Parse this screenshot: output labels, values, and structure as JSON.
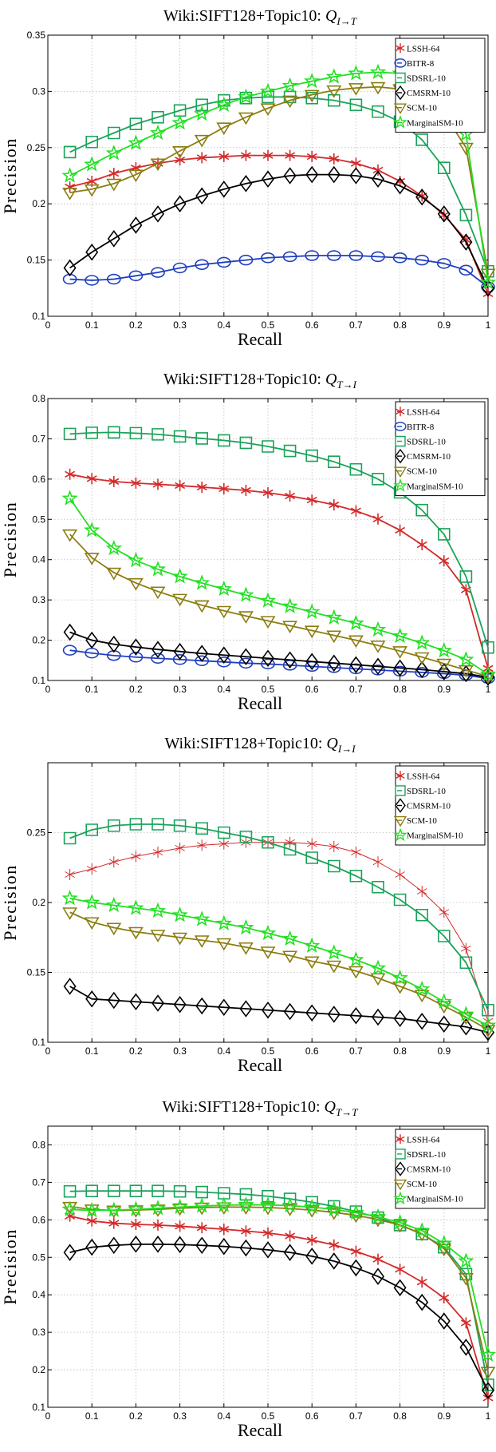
{
  "chart_data": [
    {
      "type": "line",
      "title": "Wiki:SIFT128+Topic10: ",
      "title_math": {
        "base": "Q",
        "sub": "I→T"
      },
      "xlabel": "Recall",
      "ylabel": "Precision",
      "xlim": [
        0,
        1
      ],
      "ylim": [
        0.1,
        0.35
      ],
      "xticks": [
        0,
        0.1,
        0.2,
        0.3,
        0.4,
        0.5,
        0.6,
        0.7,
        0.8,
        0.9,
        1
      ],
      "xtick_labels": [
        "0",
        "0.1",
        "0.2",
        "0.3",
        "0.4",
        "0.5",
        "0.6",
        "0.7",
        "0.8",
        "0.9",
        "1"
      ],
      "yticks": [
        0.1,
        0.15,
        0.2,
        0.25,
        0.3,
        0.35
      ],
      "ytick_labels": [
        "0.1",
        "0.15",
        "0.2",
        "0.25",
        "0.3",
        "0.35"
      ],
      "grid": true,
      "legend_position": "top-right",
      "x": [
        0.05,
        0.1,
        0.15,
        0.2,
        0.25,
        0.3,
        0.35,
        0.4,
        0.45,
        0.5,
        0.55,
        0.6,
        0.65,
        0.7,
        0.75,
        0.8,
        0.85,
        0.9,
        0.95,
        1.0
      ],
      "series": [
        {
          "name": "LSSH-64",
          "color": "#d42a2a",
          "marker": "star6",
          "values": [
            0.215,
            0.22,
            0.227,
            0.232,
            0.236,
            0.239,
            0.241,
            0.242,
            0.243,
            0.243,
            0.243,
            0.242,
            0.24,
            0.236,
            0.23,
            0.22,
            0.207,
            0.19,
            0.168,
            0.12
          ]
        },
        {
          "name": "BITR-8",
          "color": "#1f3fbf",
          "marker": "circle",
          "values": [
            0.133,
            0.132,
            0.133,
            0.136,
            0.139,
            0.143,
            0.146,
            0.148,
            0.15,
            0.152,
            0.153,
            0.154,
            0.154,
            0.154,
            0.153,
            0.152,
            0.15,
            0.147,
            0.141,
            0.126
          ]
        },
        {
          "name": "SDSRL-10",
          "color": "#1aa35a",
          "marker": "square",
          "values": [
            0.246,
            0.255,
            0.263,
            0.271,
            0.277,
            0.283,
            0.288,
            0.292,
            0.294,
            0.295,
            0.295,
            0.294,
            0.292,
            0.288,
            0.282,
            0.273,
            0.257,
            0.232,
            0.19,
            0.14
          ]
        },
        {
          "name": "CMSRM-10",
          "color": "#000000",
          "marker": "diamond",
          "values": [
            0.143,
            0.157,
            0.169,
            0.181,
            0.191,
            0.2,
            0.207,
            0.213,
            0.218,
            0.222,
            0.225,
            0.226,
            0.226,
            0.225,
            0.222,
            0.216,
            0.206,
            0.191,
            0.166,
            0.125
          ]
        },
        {
          "name": "SCM-10",
          "color": "#8b7d10",
          "marker": "triangle-down",
          "values": [
            0.21,
            0.213,
            0.218,
            0.226,
            0.236,
            0.247,
            0.257,
            0.268,
            0.277,
            0.285,
            0.292,
            0.297,
            0.301,
            0.303,
            0.304,
            0.302,
            0.295,
            0.28,
            0.25,
            0.138
          ]
        },
        {
          "name": "MarginalSM-10",
          "color": "#22e022",
          "marker": "pentagram",
          "values": [
            0.225,
            0.235,
            0.245,
            0.254,
            0.263,
            0.272,
            0.28,
            0.288,
            0.295,
            0.3,
            0.305,
            0.309,
            0.313,
            0.316,
            0.317,
            0.316,
            0.31,
            0.296,
            0.262,
            0.13
          ]
        }
      ]
    },
    {
      "type": "line",
      "title": "Wiki:SIFT128+Topic10: ",
      "title_math": {
        "base": "Q",
        "sub": "T→I"
      },
      "xlabel": "Recall",
      "ylabel": "Precision",
      "xlim": [
        0,
        1
      ],
      "ylim": [
        0.1,
        0.8
      ],
      "xticks": [
        0,
        0.1,
        0.2,
        0.3,
        0.4,
        0.5,
        0.6,
        0.7,
        0.8,
        0.9,
        1
      ],
      "xtick_labels": [
        "0",
        "0.1",
        "0.2",
        "0.3",
        "0.4",
        "0.5",
        "0.6",
        "0.7",
        "0.8",
        "0.9",
        "1"
      ],
      "yticks": [
        0.1,
        0.2,
        0.3,
        0.4,
        0.5,
        0.6,
        0.7,
        0.8
      ],
      "ytick_labels": [
        "0.1",
        "0.2",
        "0.3",
        "0.4",
        "0.5",
        "0.6",
        "0.7",
        "0.8"
      ],
      "grid": true,
      "legend_position": "top-right",
      "x": [
        0.05,
        0.1,
        0.15,
        0.2,
        0.25,
        0.3,
        0.35,
        0.4,
        0.45,
        0.5,
        0.55,
        0.6,
        0.65,
        0.7,
        0.75,
        0.8,
        0.85,
        0.9,
        0.95,
        1.0
      ],
      "series": [
        {
          "name": "LSSH-64",
          "color": "#d42a2a",
          "marker": "star6",
          "values": [
            0.612,
            0.601,
            0.594,
            0.59,
            0.587,
            0.584,
            0.58,
            0.576,
            0.572,
            0.566,
            0.558,
            0.548,
            0.536,
            0.521,
            0.501,
            0.473,
            0.437,
            0.397,
            0.325,
            0.13
          ]
        },
        {
          "name": "BITR-8",
          "color": "#1f3fbf",
          "marker": "circle",
          "values": [
            0.175,
            0.168,
            0.162,
            0.158,
            0.155,
            0.152,
            0.149,
            0.146,
            0.143,
            0.141,
            0.138,
            0.135,
            0.132,
            0.129,
            0.126,
            0.123,
            0.12,
            0.117,
            0.113,
            0.105
          ]
        },
        {
          "name": "SDSRL-10",
          "color": "#1aa35a",
          "marker": "square",
          "values": [
            0.712,
            0.715,
            0.716,
            0.714,
            0.711,
            0.706,
            0.701,
            0.696,
            0.69,
            0.681,
            0.67,
            0.658,
            0.643,
            0.624,
            0.6,
            0.567,
            0.523,
            0.463,
            0.358,
            0.182
          ]
        },
        {
          "name": "CMSRM-10",
          "color": "#000000",
          "marker": "diamond",
          "values": [
            0.22,
            0.2,
            0.19,
            0.183,
            0.177,
            0.172,
            0.167,
            0.163,
            0.159,
            0.155,
            0.151,
            0.147,
            0.143,
            0.139,
            0.135,
            0.131,
            0.127,
            0.122,
            0.117,
            0.108
          ]
        },
        {
          "name": "SCM-10",
          "color": "#8b7d10",
          "marker": "triangle-down",
          "values": [
            0.463,
            0.405,
            0.368,
            0.342,
            0.321,
            0.303,
            0.287,
            0.273,
            0.26,
            0.248,
            0.236,
            0.224,
            0.212,
            0.2,
            0.187,
            0.173,
            0.158,
            0.142,
            0.126,
            0.11
          ]
        },
        {
          "name": "MarginalSM-10",
          "color": "#22e022",
          "marker": "pentagram",
          "values": [
            0.552,
            0.473,
            0.428,
            0.398,
            0.376,
            0.358,
            0.342,
            0.327,
            0.312,
            0.298,
            0.284,
            0.27,
            0.256,
            0.242,
            0.226,
            0.21,
            0.193,
            0.174,
            0.152,
            0.115
          ]
        }
      ]
    },
    {
      "type": "line",
      "title": "Wiki:SIFT128+Topic10: ",
      "title_math": {
        "base": "Q",
        "sub": "I→I"
      },
      "xlabel": "Recall",
      "ylabel": "Precision",
      "xlim": [
        0,
        1
      ],
      "ylim": [
        0.1,
        0.3
      ],
      "xticks": [
        0,
        0.1,
        0.2,
        0.3,
        0.4,
        0.5,
        0.6,
        0.7,
        0.8,
        0.9,
        1
      ],
      "xtick_labels": [
        "0",
        "0.1",
        "0.2",
        "0.3",
        "0.4",
        "0.5",
        "0.6",
        "0.7",
        "0.8",
        "0.9",
        "1"
      ],
      "yticks": [
        0.1,
        0.15,
        0.2,
        0.25
      ],
      "ytick_labels": [
        "0.1",
        "0.15",
        "0.2",
        "0.25"
      ],
      "grid": true,
      "legend_position": "top-right",
      "x": [
        0.05,
        0.1,
        0.15,
        0.2,
        0.25,
        0.3,
        0.35,
        0.4,
        0.45,
        0.5,
        0.55,
        0.6,
        0.65,
        0.7,
        0.75,
        0.8,
        0.85,
        0.9,
        0.95,
        1.0
      ],
      "series": [
        {
          "name": "LSSH-64",
          "color": "#d42a2a",
          "marker": "star6",
          "thin": true,
          "values": [
            0.22,
            0.224,
            0.229,
            0.233,
            0.236,
            0.239,
            0.241,
            0.242,
            0.243,
            0.243,
            0.243,
            0.242,
            0.24,
            0.236,
            0.229,
            0.22,
            0.208,
            0.193,
            0.167,
            0.115
          ]
        },
        {
          "name": "SDSRL-10",
          "color": "#1aa35a",
          "marker": "square",
          "values": [
            0.246,
            0.252,
            0.255,
            0.256,
            0.256,
            0.255,
            0.253,
            0.25,
            0.247,
            0.243,
            0.238,
            0.232,
            0.226,
            0.219,
            0.211,
            0.202,
            0.191,
            0.176,
            0.157,
            0.123
          ]
        },
        {
          "name": "CMSRM-10",
          "color": "#000000",
          "marker": "diamond",
          "values": [
            0.14,
            0.131,
            0.13,
            0.129,
            0.128,
            0.127,
            0.126,
            0.125,
            0.124,
            0.123,
            0.122,
            0.121,
            0.12,
            0.119,
            0.118,
            0.117,
            0.115,
            0.113,
            0.111,
            0.107
          ]
        },
        {
          "name": "SCM-10",
          "color": "#8b7d10",
          "marker": "triangle-down",
          "values": [
            0.193,
            0.186,
            0.182,
            0.179,
            0.177,
            0.175,
            0.173,
            0.171,
            0.168,
            0.165,
            0.162,
            0.158,
            0.155,
            0.151,
            0.146,
            0.14,
            0.134,
            0.126,
            0.118,
            0.109
          ]
        },
        {
          "name": "MarginalSM-10",
          "color": "#22e022",
          "marker": "pentagram",
          "values": [
            0.203,
            0.2,
            0.198,
            0.196,
            0.194,
            0.191,
            0.188,
            0.185,
            0.182,
            0.178,
            0.174,
            0.169,
            0.164,
            0.159,
            0.153,
            0.146,
            0.138,
            0.129,
            0.12,
            0.112
          ]
        }
      ]
    },
    {
      "type": "line",
      "title": "Wiki:SIFT128+Topic10: ",
      "title_math": {
        "base": "Q",
        "sub": "T→T"
      },
      "xlabel": "Recall",
      "ylabel": "Precision",
      "xlim": [
        0,
        1
      ],
      "ylim": [
        0.1,
        0.85
      ],
      "xticks": [
        0,
        0.1,
        0.2,
        0.3,
        0.4,
        0.5,
        0.6,
        0.7,
        0.8,
        0.9,
        1
      ],
      "xtick_labels": [
        "0",
        "0.1",
        "0.2",
        "0.3",
        "0.4",
        "0.5",
        "0.6",
        "0.7",
        "0.8",
        "0.9",
        "1"
      ],
      "yticks": [
        0.1,
        0.2,
        0.3,
        0.4,
        0.5,
        0.6,
        0.7,
        0.8
      ],
      "ytick_labels": [
        "0.1",
        "0.2",
        "0.3",
        "0.4",
        "0.5",
        "0.6",
        "0.7",
        "0.8"
      ],
      "grid": true,
      "legend_position": "top-right",
      "x": [
        0.05,
        0.1,
        0.15,
        0.2,
        0.25,
        0.3,
        0.35,
        0.4,
        0.45,
        0.5,
        0.55,
        0.6,
        0.65,
        0.7,
        0.75,
        0.8,
        0.85,
        0.9,
        0.95,
        1.0
      ],
      "series": [
        {
          "name": "LSSH-64",
          "color": "#d42a2a",
          "marker": "star6",
          "values": [
            0.61,
            0.597,
            0.591,
            0.588,
            0.586,
            0.583,
            0.579,
            0.575,
            0.57,
            0.565,
            0.557,
            0.546,
            0.533,
            0.516,
            0.495,
            0.468,
            0.434,
            0.392,
            0.325,
            0.125
          ]
        },
        {
          "name": "SDSRL-10",
          "color": "#1aa35a",
          "marker": "square",
          "values": [
            0.676,
            0.677,
            0.677,
            0.677,
            0.677,
            0.676,
            0.674,
            0.671,
            0.668,
            0.663,
            0.656,
            0.647,
            0.636,
            0.622,
            0.606,
            0.586,
            0.562,
            0.527,
            0.455,
            0.16
          ]
        },
        {
          "name": "CMSRM-10",
          "color": "#000000",
          "marker": "diamond",
          "values": [
            0.513,
            0.527,
            0.532,
            0.535,
            0.535,
            0.534,
            0.532,
            0.529,
            0.525,
            0.52,
            0.513,
            0.503,
            0.49,
            0.472,
            0.449,
            0.419,
            0.38,
            0.33,
            0.26,
            0.145
          ]
        },
        {
          "name": "SCM-10",
          "color": "#8b7d10",
          "marker": "triangle-down",
          "values": [
            0.635,
            0.628,
            0.625,
            0.626,
            0.628,
            0.631,
            0.633,
            0.634,
            0.634,
            0.633,
            0.63,
            0.626,
            0.62,
            0.612,
            0.601,
            0.586,
            0.563,
            0.523,
            0.445,
            0.195
          ]
        },
        {
          "name": "MarginalSM-10",
          "color": "#22e022",
          "marker": "pentagram",
          "values": [
            0.628,
            0.625,
            0.626,
            0.628,
            0.631,
            0.634,
            0.637,
            0.639,
            0.64,
            0.64,
            0.638,
            0.634,
            0.628,
            0.619,
            0.608,
            0.593,
            0.571,
            0.537,
            0.49,
            0.24
          ]
        }
      ]
    }
  ]
}
